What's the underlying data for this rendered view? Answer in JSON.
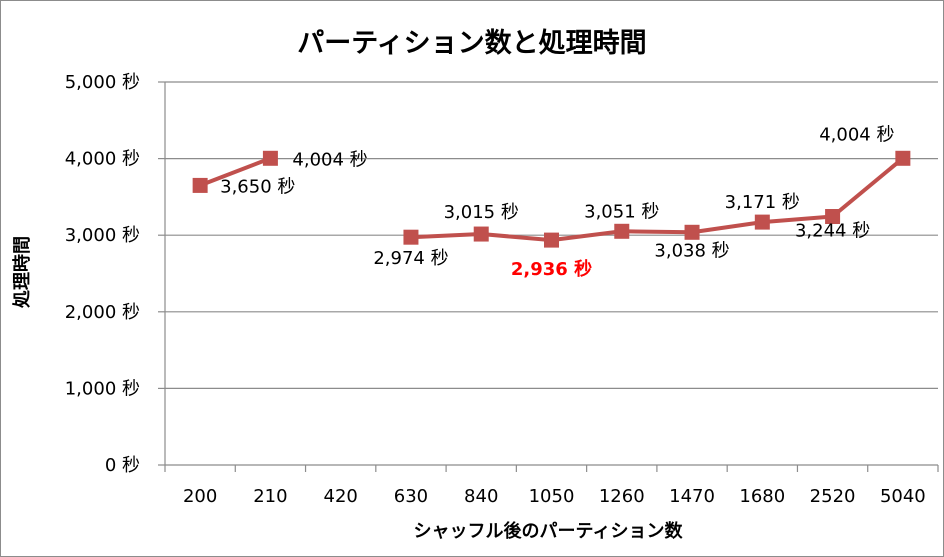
{
  "chart_data": {
    "type": "line",
    "title": "パーティション数と処理時間",
    "xlabel": "シャッフル後のパーティション数",
    "ylabel": "処理時間",
    "categories": [
      "200",
      "210",
      "420",
      "630",
      "840",
      "1050",
      "1260",
      "1470",
      "1680",
      "2520",
      "5040"
    ],
    "y_ticks": [
      "0 秒",
      "1,000 秒",
      "2,000 秒",
      "3,000 秒",
      "4,000 秒",
      "5,000 秒"
    ],
    "ylim": [
      0,
      5000
    ],
    "grid": true,
    "legend": "none",
    "series": [
      {
        "values": [
          3650,
          4004,
          null,
          2974,
          3015,
          2936,
          3051,
          3038,
          3171,
          3244,
          4004
        ],
        "labels": [
          "3,650 秒",
          "4,004 秒",
          "",
          "2,974 秒",
          "3,015 秒",
          "2,936 秒",
          "3,051 秒",
          "3,038 秒",
          "3,171 秒",
          "3,244 秒",
          "4,004 秒"
        ],
        "color": "#c0504d"
      }
    ],
    "highlight": {
      "index": 5,
      "color": "#ff0000"
    }
  }
}
